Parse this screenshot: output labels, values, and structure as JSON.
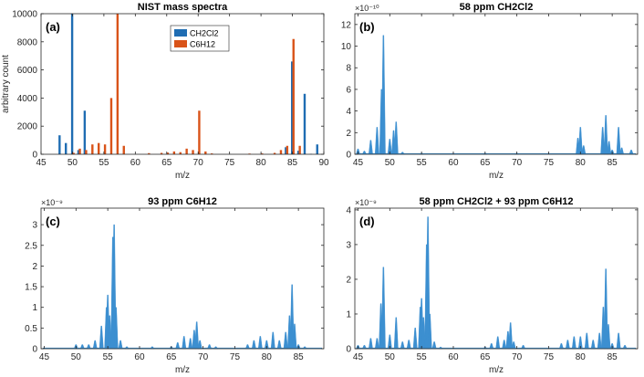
{
  "colors": {
    "ch2cl2": "#1f6db3",
    "c6h12": "#d95319",
    "spectrum": "#3c8fd0",
    "axis": "#262626"
  },
  "chart_data": [
    {
      "id": "a",
      "type": "bar",
      "panel_label": "(a)",
      "title": "NIST mass spectra",
      "xlabel": "m/z",
      "ylabel": "arbitrary count",
      "xlim": [
        45,
        90
      ],
      "ylim": [
        0,
        10000
      ],
      "xticks": [
        45,
        50,
        55,
        60,
        65,
        70,
        75,
        80,
        85,
        90
      ],
      "yticks": [
        0,
        2000,
        4000,
        6000,
        8000,
        10000
      ],
      "exponent": "",
      "legend": {
        "position": "top-center",
        "entries": [
          "CH2Cl2",
          "C6H12"
        ]
      },
      "series": [
        {
          "name": "CH2Cl2",
          "color_key": "ch2cl2",
          "x": [
            48,
            49,
            50,
            51,
            52,
            84,
            85,
            86,
            87,
            88,
            89
          ],
          "values": [
            1350,
            800,
            10000,
            300,
            3100,
            500,
            6600,
            250,
            4300,
            30,
            700
          ]
        },
        {
          "name": "C6H12",
          "color_key": "c6h12",
          "x": [
            50,
            51,
            52,
            53,
            54,
            55,
            56,
            57,
            58,
            62,
            64,
            65,
            66,
            67,
            68,
            69,
            70,
            71,
            72,
            78,
            80,
            82,
            83,
            84,
            85,
            86
          ],
          "values": [
            100,
            400,
            300,
            700,
            800,
            700,
            4000,
            10000,
            600,
            80,
            100,
            120,
            200,
            150,
            400,
            300,
            3100,
            200,
            60,
            50,
            60,
            100,
            300,
            600,
            8200,
            600
          ]
        }
      ]
    },
    {
      "id": "b",
      "type": "area",
      "panel_label": "(b)",
      "title": "58 ppm CH2Cl2",
      "xlabel": "m/z",
      "ylabel": "",
      "xlim": [
        44.5,
        89
      ],
      "ylim": [
        0,
        13
      ],
      "xticks": [
        45,
        50,
        55,
        60,
        65,
        70,
        75,
        80,
        85
      ],
      "yticks": [
        0,
        2,
        4,
        6,
        8,
        10,
        12
      ],
      "exponent": "×10⁻¹⁰",
      "series": [
        {
          "name": "58 ppm CH2Cl2",
          "color_key": "spectrum",
          "peaks": [
            [
              45,
              0.5
            ],
            [
              46,
              0.3
            ],
            [
              47,
              1.3
            ],
            [
              48,
              2.5
            ],
            [
              48.7,
              6.0
            ],
            [
              49,
              11.0
            ],
            [
              50,
              1.4
            ],
            [
              50.6,
              2.2
            ],
            [
              51,
              3.0
            ],
            [
              52,
              0.2
            ],
            [
              55,
              0.1
            ],
            [
              65,
              0.1
            ],
            [
              70,
              0.1
            ],
            [
              79.6,
              1.5
            ],
            [
              80,
              2.5
            ],
            [
              80.5,
              0.8
            ],
            [
              83.5,
              2.5
            ],
            [
              84,
              3.6
            ],
            [
              84.5,
              1.2
            ],
            [
              85,
              0.4
            ],
            [
              86,
              2.5
            ],
            [
              86.5,
              0.6
            ],
            [
              88,
              0.4
            ]
          ]
        }
      ]
    },
    {
      "id": "c",
      "type": "area",
      "panel_label": "(c)",
      "title": "93 ppm C6H12",
      "xlabel": "m/z",
      "ylabel": "",
      "xlim": [
        44.5,
        89
      ],
      "ylim": [
        0,
        3.4
      ],
      "xticks": [
        45,
        50,
        55,
        60,
        65,
        70,
        75,
        80,
        85
      ],
      "yticks": [
        0,
        0.5,
        1,
        1.5,
        2,
        2.5,
        3
      ],
      "exponent": "×10⁻⁹",
      "series": [
        {
          "name": "93 ppm C6H12",
          "color_key": "spectrum",
          "peaks": [
            [
              50,
              0.1
            ],
            [
              51,
              0.1
            ],
            [
              52,
              0.1
            ],
            [
              53,
              0.2
            ],
            [
              54,
              0.55
            ],
            [
              54.8,
              1.0
            ],
            [
              55,
              1.3
            ],
            [
              55.3,
              0.8
            ],
            [
              55.8,
              2.7
            ],
            [
              56,
              3.0
            ],
            [
              56.3,
              1.0
            ],
            [
              57,
              0.2
            ],
            [
              58,
              0.05
            ],
            [
              62,
              0.05
            ],
            [
              65,
              0.05
            ],
            [
              66,
              0.15
            ],
            [
              67,
              0.3
            ],
            [
              68,
              0.25
            ],
            [
              68.6,
              0.45
            ],
            [
              69,
              0.65
            ],
            [
              69.5,
              0.2
            ],
            [
              71,
              0.1
            ],
            [
              72,
              0.05
            ],
            [
              77,
              0.1
            ],
            [
              78,
              0.2
            ],
            [
              79,
              0.3
            ],
            [
              80,
              0.2
            ],
            [
              81,
              0.4
            ],
            [
              82,
              0.2
            ],
            [
              83,
              0.4
            ],
            [
              83.6,
              0.8
            ],
            [
              84,
              1.55
            ],
            [
              84.4,
              0.6
            ],
            [
              85,
              0.1
            ],
            [
              86,
              0.05
            ]
          ]
        }
      ]
    },
    {
      "id": "d",
      "type": "area",
      "panel_label": "(d)",
      "title": "58 ppm CH2Cl2 + 93 ppm C6H12",
      "xlabel": "m/z",
      "ylabel": "",
      "xlim": [
        44.5,
        89
      ],
      "ylim": [
        0,
        4.05
      ],
      "xticks": [
        45,
        50,
        55,
        60,
        65,
        70,
        75,
        80,
        85
      ],
      "yticks": [
        0,
        1,
        2,
        3,
        4
      ],
      "exponent": "×10⁻⁹",
      "series": [
        {
          "name": "58 ppm CH2Cl2 + 93 ppm C6H12",
          "color_key": "spectrum",
          "peaks": [
            [
              45,
              0.1
            ],
            [
              46,
              0.1
            ],
            [
              47,
              0.3
            ],
            [
              48,
              0.3
            ],
            [
              48.6,
              1.3
            ],
            [
              49,
              2.35
            ],
            [
              50,
              0.4
            ],
            [
              51,
              0.9
            ],
            [
              52,
              0.2
            ],
            [
              53,
              0.25
            ],
            [
              54,
              0.6
            ],
            [
              54.8,
              1.2
            ],
            [
              55,
              1.45
            ],
            [
              55.3,
              0.9
            ],
            [
              55.8,
              3.0
            ],
            [
              56,
              3.8
            ],
            [
              56.3,
              1.0
            ],
            [
              57,
              0.2
            ],
            [
              58,
              0.05
            ],
            [
              65,
              0.05
            ],
            [
              66,
              0.15
            ],
            [
              67,
              0.35
            ],
            [
              68,
              0.25
            ],
            [
              68.6,
              0.5
            ],
            [
              69,
              0.75
            ],
            [
              69.5,
              0.2
            ],
            [
              71,
              0.1
            ],
            [
              77,
              0.15
            ],
            [
              78,
              0.25
            ],
            [
              79,
              0.35
            ],
            [
              80,
              0.35
            ],
            [
              81,
              0.45
            ],
            [
              82,
              0.25
            ],
            [
              83,
              0.45
            ],
            [
              83.6,
              1.2
            ],
            [
              84,
              2.3
            ],
            [
              84.4,
              0.7
            ],
            [
              85,
              0.15
            ],
            [
              86,
              0.45
            ],
            [
              87,
              0.1
            ]
          ]
        }
      ]
    }
  ]
}
